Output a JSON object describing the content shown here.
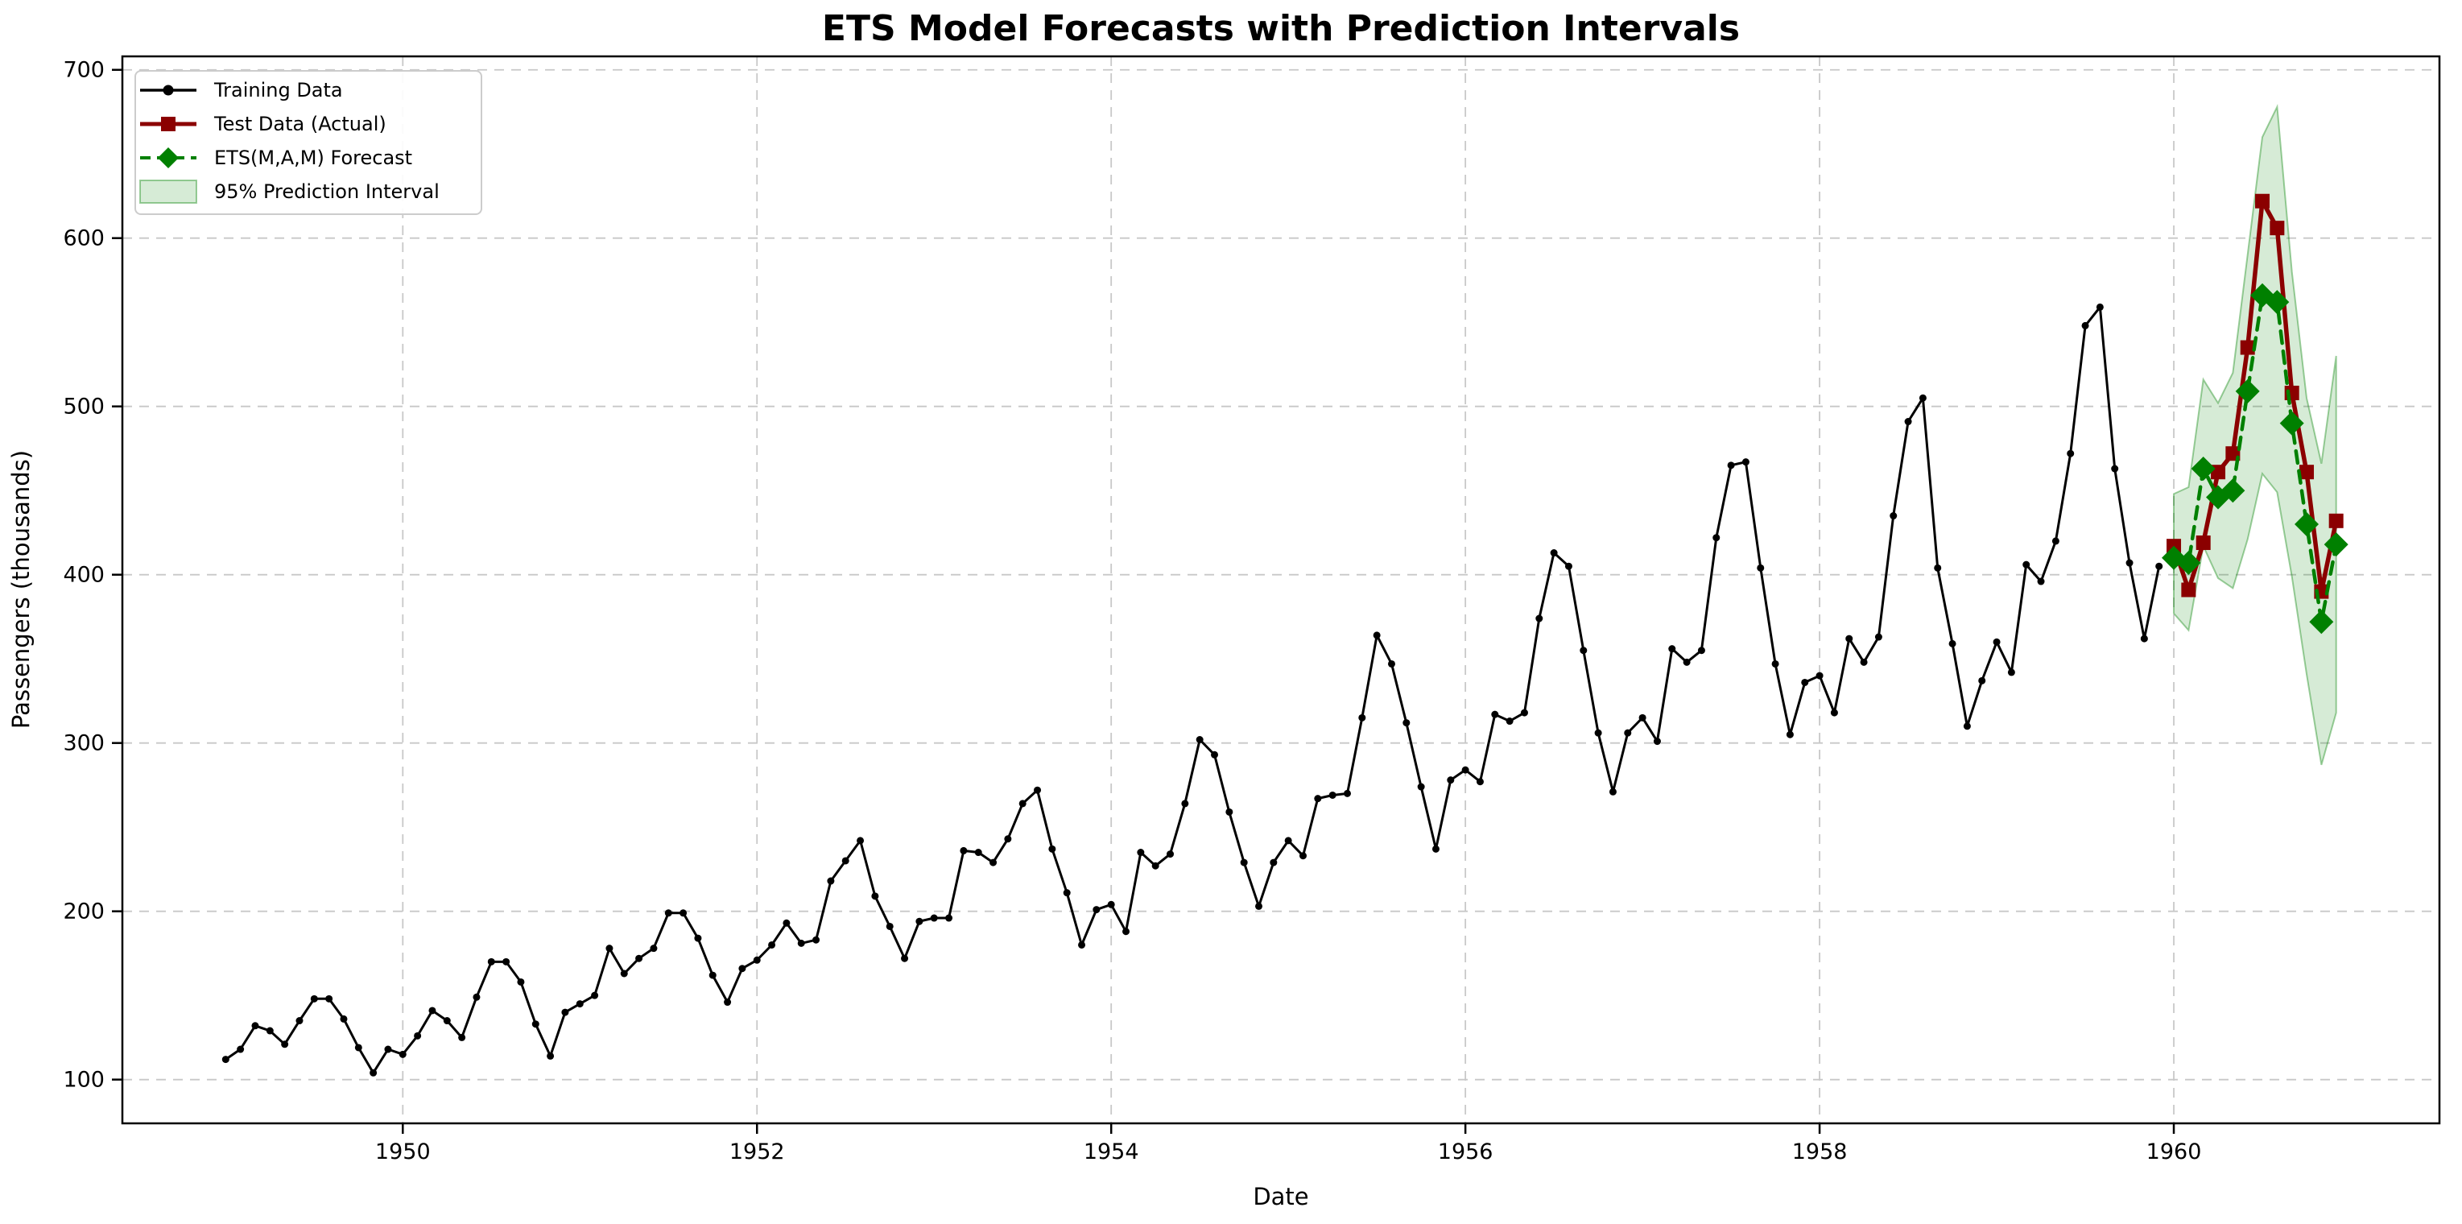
{
  "title": "ETS Model Forecasts with Prediction Intervals",
  "colors": {
    "training": "#000000",
    "test": "#8b0000",
    "forecast": "#008000",
    "interval_fill": "#008000",
    "grid": "#c8c8c8",
    "spine": "#000000"
  },
  "chart_data": {
    "type": "line",
    "title": "ETS Model Forecasts with Prediction Intervals",
    "xlabel": "Date",
    "ylabel": "Passengers (thousands)",
    "frequency": "monthly",
    "x_start": "1949-01",
    "x_tick_labels": [
      "1950",
      "1952",
      "1954",
      "1956",
      "1958",
      "1960"
    ],
    "x_tick_month_index": [
      12,
      36,
      60,
      84,
      108,
      132
    ],
    "y_ticks": [
      100,
      200,
      300,
      400,
      500,
      600,
      700
    ],
    "ylim": [
      74,
      708
    ],
    "xlim_month_index": [
      -7,
      150
    ],
    "grid": true,
    "legend_position": "upper-left",
    "series": [
      {
        "name": "Training Data",
        "kind": "line",
        "marker": "circle",
        "color": "#000000",
        "start_index": 0,
        "values": [
          112,
          118,
          132,
          129,
          121,
          135,
          148,
          148,
          136,
          119,
          104,
          118,
          115,
          126,
          141,
          135,
          125,
          149,
          170,
          170,
          158,
          133,
          114,
          140,
          145,
          150,
          178,
          163,
          172,
          178,
          199,
          199,
          184,
          162,
          146,
          166,
          171,
          180,
          193,
          181,
          183,
          218,
          230,
          242,
          209,
          191,
          172,
          194,
          196,
          196,
          236,
          235,
          229,
          243,
          264,
          272,
          237,
          211,
          180,
          201,
          204,
          188,
          235,
          227,
          234,
          264,
          302,
          293,
          259,
          229,
          203,
          229,
          242,
          233,
          267,
          269,
          270,
          315,
          364,
          347,
          312,
          274,
          237,
          278,
          284,
          277,
          317,
          313,
          318,
          374,
          413,
          405,
          355,
          306,
          271,
          306,
          315,
          301,
          356,
          348,
          355,
          422,
          465,
          467,
          404,
          347,
          305,
          336,
          340,
          318,
          362,
          348,
          363,
          435,
          491,
          505,
          404,
          359,
          310,
          337,
          360,
          342,
          406,
          396,
          420,
          472,
          548,
          559,
          463,
          407,
          362,
          405
        ]
      },
      {
        "name": "Test Data (Actual)",
        "kind": "line",
        "marker": "square",
        "color": "#8b0000",
        "start_index": 132,
        "values": [
          417,
          391,
          419,
          461,
          472,
          535,
          622,
          606,
          508,
          461,
          390,
          432
        ]
      },
      {
        "name": "ETS(M,A,M) Forecast",
        "kind": "line",
        "marker": "diamond",
        "dashed": true,
        "color": "#008000",
        "start_index": 132,
        "values": [
          410,
          407,
          463,
          446,
          450,
          509,
          566,
          562,
          490,
          430,
          372,
          418
        ]
      },
      {
        "name": "95% Prediction Interval",
        "kind": "band",
        "color": "#008000",
        "fill_opacity": 0.16,
        "edge_opacity": 0.38,
        "start_index": 132,
        "upper": [
          448,
          452,
          516,
          502,
          520,
          590,
          660,
          678,
          580,
          505,
          466,
          530
        ],
        "lower": [
          377,
          367,
          417,
          398,
          392,
          421,
          460,
          449,
          399,
          341,
          287,
          318
        ]
      }
    ]
  }
}
